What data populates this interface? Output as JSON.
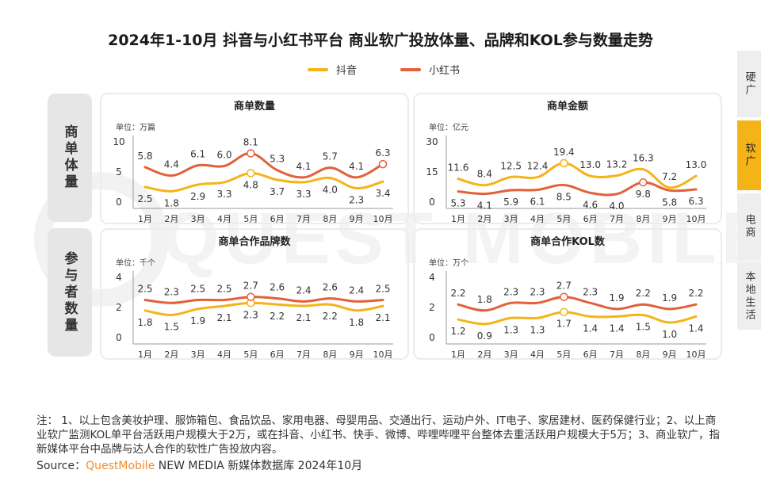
{
  "title": "2024年1-10月 抖音与小红书平台 商业软广投放体量、品牌和KOL参与数量走势",
  "legend": [
    {
      "name": "抖音",
      "color": "#f4b418"
    },
    {
      "name": "小红书",
      "color": "#e2613a"
    }
  ],
  "row_labels": [
    "商单体量",
    "参与者数量"
  ],
  "side_tabs": [
    {
      "label": "硬广",
      "active": false
    },
    {
      "label": "软广",
      "active": true
    },
    {
      "label": "电商",
      "active": false
    },
    {
      "label": "本地生活",
      "active": false
    }
  ],
  "watermark": "QUEST MOBILE",
  "note": "注： 1、以上包含美妆护理、服饰箱包、食品饮品、家用电器、母婴用品、交通出行、运动户外、IT电子、家居建材、医药保健行业；2、以上商业软广监测KOL单平台活跃用户规模大于2万，或在抖音、小红书、快手、微博、哔哩哔哩平台整体去重活跃用户规模大于5万；3、商业软广，指新媒体平台中品牌与达人合作的软性广告投放内容。",
  "source": {
    "prefix": "Source：",
    "brand": "QuestMobile",
    "suffix": " NEW MEDIA 新媒体数据库 2024年10月"
  },
  "chart_data": [
    {
      "type": "line",
      "title": "商单数量",
      "unit": "单位：万篇",
      "categories": [
        "1月",
        "2月",
        "3月",
        "4月",
        "5月",
        "6月",
        "7月",
        "8月",
        "9月",
        "10月"
      ],
      "ylim": [
        0,
        10
      ],
      "yticks": [
        0,
        5,
        10
      ],
      "series": [
        {
          "name": "抖音",
          "values": [
            2.5,
            1.8,
            2.9,
            3.3,
            4.8,
            3.7,
            3.3,
            4.0,
            2.3,
            3.4
          ]
        },
        {
          "name": "小红书",
          "values": [
            5.8,
            4.4,
            6.1,
            6.0,
            8.1,
            5.3,
            4.1,
            5.7,
            4.1,
            6.3
          ]
        }
      ]
    },
    {
      "type": "line",
      "title": "商单金额",
      "unit": "单位：亿元",
      "categories": [
        "1月",
        "2月",
        "3月",
        "4月",
        "5月",
        "6月",
        "7月",
        "8月",
        "9月",
        "10月"
      ],
      "ylim": [
        0,
        30
      ],
      "yticks": [
        0,
        15,
        30
      ],
      "series": [
        {
          "name": "抖音",
          "values": [
            11.6,
            8.4,
            12.5,
            12.4,
            19.4,
            13.0,
            13.2,
            16.3,
            7.2,
            13.0
          ]
        },
        {
          "name": "小红书",
          "values": [
            5.3,
            4.1,
            5.9,
            6.1,
            8.5,
            4.6,
            4.0,
            9.8,
            5.8,
            6.3
          ]
        }
      ]
    },
    {
      "type": "line",
      "title": "商单合作品牌数",
      "unit": "单位：千个",
      "categories": [
        "1月",
        "2月",
        "3月",
        "4月",
        "5月",
        "6月",
        "7月",
        "8月",
        "9月",
        "10月"
      ],
      "ylim": [
        0,
        4
      ],
      "yticks": [
        0,
        2,
        4
      ],
      "series": [
        {
          "name": "抖音",
          "values": [
            1.8,
            1.5,
            1.9,
            2.1,
            2.3,
            2.2,
            2.1,
            2.2,
            1.8,
            2.1
          ]
        },
        {
          "name": "小红书",
          "values": [
            2.5,
            2.3,
            2.5,
            2.5,
            2.7,
            2.6,
            2.4,
            2.6,
            2.4,
            2.5
          ]
        }
      ]
    },
    {
      "type": "line",
      "title": "商单合作KOL数",
      "unit": "单位：万个",
      "categories": [
        "1月",
        "2月",
        "3月",
        "4月",
        "5月",
        "6月",
        "7月",
        "8月",
        "9月",
        "10月"
      ],
      "ylim": [
        0,
        4
      ],
      "yticks": [
        0,
        2,
        4
      ],
      "series": [
        {
          "name": "抖音",
          "values": [
            1.2,
            0.9,
            1.3,
            1.3,
            1.7,
            1.4,
            1.4,
            1.5,
            1.0,
            1.4
          ]
        },
        {
          "name": "小红书",
          "values": [
            2.2,
            1.8,
            2.3,
            2.3,
            2.7,
            2.3,
            1.9,
            2.2,
            1.9,
            2.2
          ]
        }
      ]
    }
  ]
}
